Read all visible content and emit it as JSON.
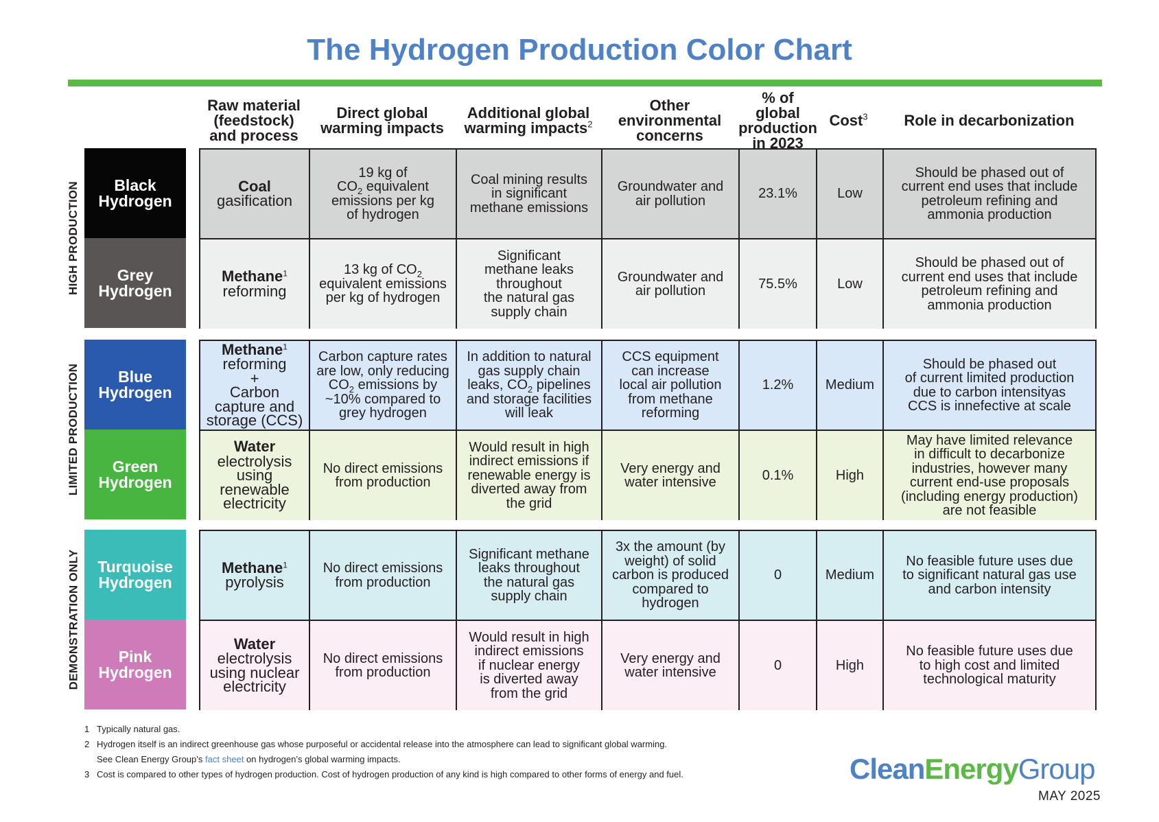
{
  "title": "The Hydrogen Production Color Chart",
  "colors": {
    "title_blue": "#4f81c7",
    "rule_green": "#5cb947"
  },
  "columns": {
    "feedstock": [
      "Raw material",
      "(feedstock)",
      "and process"
    ],
    "direct": [
      "Direct global",
      "warming impacts"
    ],
    "additional": [
      "Additional global",
      "warming impacts"
    ],
    "additional_sup": "2",
    "other": [
      "Other",
      "environmental",
      "concerns"
    ],
    "pct": [
      "% of global",
      "production",
      "in 2023"
    ],
    "cost": "Cost",
    "cost_sup": "3",
    "role": "Role in decarbonization"
  },
  "groups": [
    {
      "label": "HIGH PRODUCTION"
    },
    {
      "label": "LIMITED PRODUCTION"
    },
    {
      "label": "DEMONSTRATION ONLY"
    }
  ],
  "rows": [
    {
      "name": [
        "Black",
        "Hydrogen"
      ],
      "swatch": "#060606",
      "bg": "#d4d5d5",
      "feed_bold": "Coal",
      "feed_rest": [
        "gasification"
      ],
      "direct": [
        "19 kg of",
        "CO|2| equivalent",
        "emissions per kg",
        "of hydrogen"
      ],
      "additional": [
        "Coal mining results",
        "in significant",
        "methane emissions"
      ],
      "other": [
        "Groundwater and",
        "air pollution"
      ],
      "pct": "23.1%",
      "cost": "Low",
      "role": [
        "Should be phased out of",
        "current end uses that include",
        "petroleum refining and",
        "ammonia production"
      ]
    },
    {
      "name": [
        "Grey",
        "Hydrogen"
      ],
      "swatch": "#595555",
      "bg": "#eeefef",
      "feed_bold": "Methane",
      "feed_sup": "1",
      "feed_rest": [
        "reforming"
      ],
      "direct": [
        "13 kg of CO|2|",
        "equivalent emissions",
        "per kg of hydrogen"
      ],
      "additional": [
        "Significant",
        "methane leaks",
        "throughout",
        "the natural gas",
        "supply chain"
      ],
      "other": [
        "Groundwater and",
        "air pollution"
      ],
      "pct": "75.5%",
      "cost": "Low",
      "role": [
        "Should be phased out of",
        "current end uses that include",
        "petroleum refining and",
        "ammonia production"
      ]
    },
    {
      "name": [
        "Blue",
        "Hydrogen"
      ],
      "swatch": "#2a5aad",
      "bg": "#d9e8f8",
      "feed_bold": "Methane",
      "feed_sup": "1",
      "feed_rest": [
        "reforming",
        "+",
        "Carbon",
        "capture and",
        "storage (CCS)"
      ],
      "direct": [
        "Carbon capture rates",
        "are low, only reducing",
        "CO|2| emissions by",
        "~10% compared to",
        "grey hydrogen"
      ],
      "additional": [
        "In addition to natural",
        "gas supply chain",
        "leaks, CO|2| pipelines",
        "and storage facilities",
        "will leak"
      ],
      "other": [
        "CCS equipment",
        "can increase",
        "local air pollution",
        "from methane",
        "reforming"
      ],
      "pct": "1.2%",
      "cost": "Medium",
      "role": [
        "Should be phased out",
        "of current limited production",
        "due to carbon intensityas",
        "CCS is innefective at scale"
      ]
    },
    {
      "name": [
        "Green",
        "Hydrogen"
      ],
      "swatch": "#47b53f",
      "bg": "#ecf4dd",
      "feed_bold": "Water",
      "feed_rest": [
        "electrolysis",
        "using",
        "renewable",
        "electricity"
      ],
      "direct": [
        "No direct emissions",
        "from production"
      ],
      "additional": [
        "Would result in high",
        "indirect emissions if",
        "renewable energy is",
        "diverted away from",
        "the grid"
      ],
      "other": [
        "Very energy and",
        "water intensive"
      ],
      "pct": "0.1%",
      "cost": "High",
      "role": [
        "May have limited relevance",
        "in difficult to decarbonize",
        "industries, however many",
        "current end-use proposals",
        "(including energy production)",
        "are not feasible"
      ]
    },
    {
      "name": [
        "Turquoise",
        "Hydrogen"
      ],
      "swatch": "#3cbcb9",
      "bg": "#d6eef1",
      "feed_bold": "Methane",
      "feed_sup": "1",
      "feed_rest": [
        "pyrolysis"
      ],
      "direct": [
        "No direct emissions",
        "from production"
      ],
      "additional": [
        "Significant methane",
        "leaks throughout",
        "the natural gas",
        "supply chain"
      ],
      "other": [
        "3x the amount (by",
        "weight) of solid",
        "carbon is produced",
        "compared to",
        "hydrogen"
      ],
      "pct": "0",
      "cost": "Medium",
      "role": [
        "No feasible future uses due",
        "to significant natural gas use",
        "and carbon intensity"
      ]
    },
    {
      "name": [
        "Pink",
        "Hydrogen"
      ],
      "swatch": "#cf7ab9",
      "bg": "#fbeef5",
      "feed_bold": "Water",
      "feed_rest": [
        "electrolysis",
        "using nuclear",
        "electricity"
      ],
      "direct": [
        "No direct emissions",
        "from production"
      ],
      "additional": [
        "Would result in high",
        "indirect emissions",
        "if nuclear energy",
        "is diverted away",
        "from the grid"
      ],
      "other": [
        "Very energy and",
        "water intensive"
      ],
      "pct": "0",
      "cost": "High",
      "role": [
        "No feasible future uses due",
        "to high cost and limited",
        "technological maturity"
      ]
    }
  ],
  "footnotes": {
    "n1": "1",
    "t1": "Typically natural gas.",
    "n2": "2",
    "t2": "Hydrogen itself is an indirect greenhouse gas whose purposeful or accidental release into the atmosphere can lead to significant global warming.",
    "t2b_pre": "See Clean Energy Group’s ",
    "t2b_link": "fact sheet",
    "t2b_post": " on hydrogen’s global warming impacts.",
    "n3": "3",
    "t3": "Cost is compared to other types of hydrogen production. Cost of hydrogen production of any kind is high compared to other forms of energy and fuel."
  },
  "logo": {
    "clean": "Clean",
    "energy": "Energy",
    "group": "Group"
  },
  "date": "MAY 2025"
}
